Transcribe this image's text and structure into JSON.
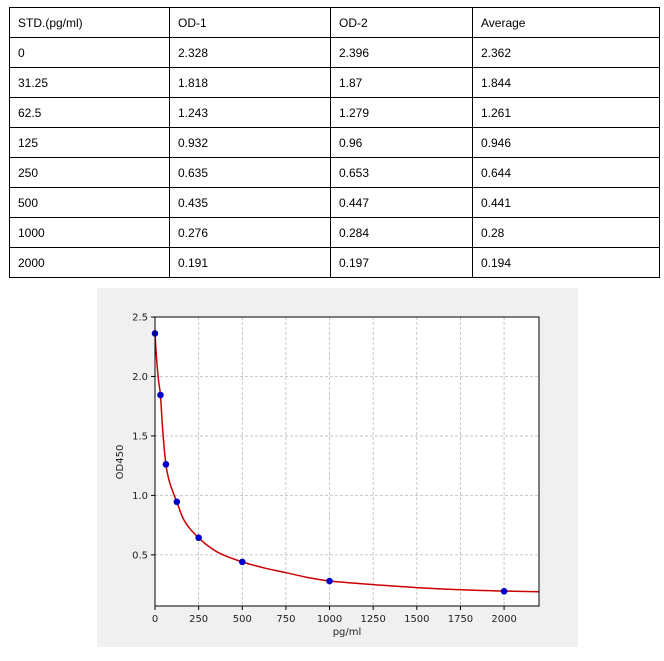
{
  "table": {
    "headers": [
      "STD.(pg/ml)",
      "OD-1",
      "OD-2",
      "Average"
    ],
    "rows": [
      [
        "0",
        "2.328",
        "2.396",
        "2.362"
      ],
      [
        "31.25",
        "1.818",
        "1.87",
        "1.844"
      ],
      [
        "62.5",
        "1.243",
        "1.279",
        "1.261"
      ],
      [
        "125",
        "0.932",
        "0.96",
        "0.946"
      ],
      [
        "250",
        "0.635",
        "0.653",
        "0.644"
      ],
      [
        "500",
        "0.435",
        "0.447",
        "0.441"
      ],
      [
        "1000",
        "0.276",
        "0.284",
        "0.28"
      ],
      [
        "2000",
        "0.191",
        "0.197",
        "0.194"
      ]
    ]
  },
  "chart_data": {
    "type": "scatter",
    "title": "",
    "xlabel": "pg/ml",
    "ylabel": "OD450",
    "xlim": [
      0,
      2200
    ],
    "ylim": [
      0.07,
      2.5
    ],
    "xticks": [
      0,
      250,
      500,
      750,
      1000,
      1250,
      1500,
      1750,
      2000
    ],
    "yticks": [
      0.5,
      1.0,
      1.5,
      2.0,
      2.5
    ],
    "ytick_labels": [
      "0.5",
      "1.0",
      "1.5",
      "2.0",
      "2.5"
    ],
    "grid": true,
    "series": [
      {
        "x": [
          0,
          31.25,
          62.5,
          125,
          250,
          500,
          1000,
          2000
        ],
        "y": [
          2.362,
          1.844,
          1.261,
          0.946,
          0.644,
          0.441,
          0.28,
          0.194
        ],
        "color": "#0000cc"
      }
    ],
    "fit_curve": {
      "color": "#cc0000",
      "x": [
        0,
        10,
        20,
        31.25,
        45,
        62.5,
        80,
        100,
        125,
        160,
        200,
        250,
        300,
        375,
        500,
        625,
        750,
        875,
        1000,
        1250,
        1500,
        1750,
        2000,
        2200
      ],
      "y": [
        2.36,
        2.13,
        1.97,
        1.84,
        1.53,
        1.26,
        1.13,
        1.04,
        0.946,
        0.81,
        0.72,
        0.644,
        0.58,
        0.51,
        0.441,
        0.39,
        0.35,
        0.31,
        0.28,
        0.25,
        0.225,
        0.207,
        0.196,
        0.19
      ]
    }
  }
}
